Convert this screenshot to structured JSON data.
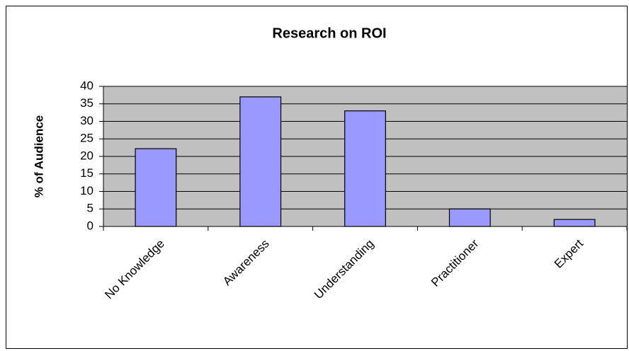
{
  "chart_data": {
    "type": "bar",
    "title": "Research on ROI",
    "y_label": "% of Audience",
    "categories": [
      "No Knowledge",
      "Awareness",
      "Understanding",
      "Practitioner",
      "Expert"
    ],
    "values": [
      22.2,
      37,
      33,
      5,
      2
    ],
    "color": "#9999ff",
    "ylim": [
      0,
      40
    ],
    "yticks": [
      0,
      5,
      10,
      15,
      20,
      25,
      30,
      35,
      40
    ],
    "grid": true
  }
}
